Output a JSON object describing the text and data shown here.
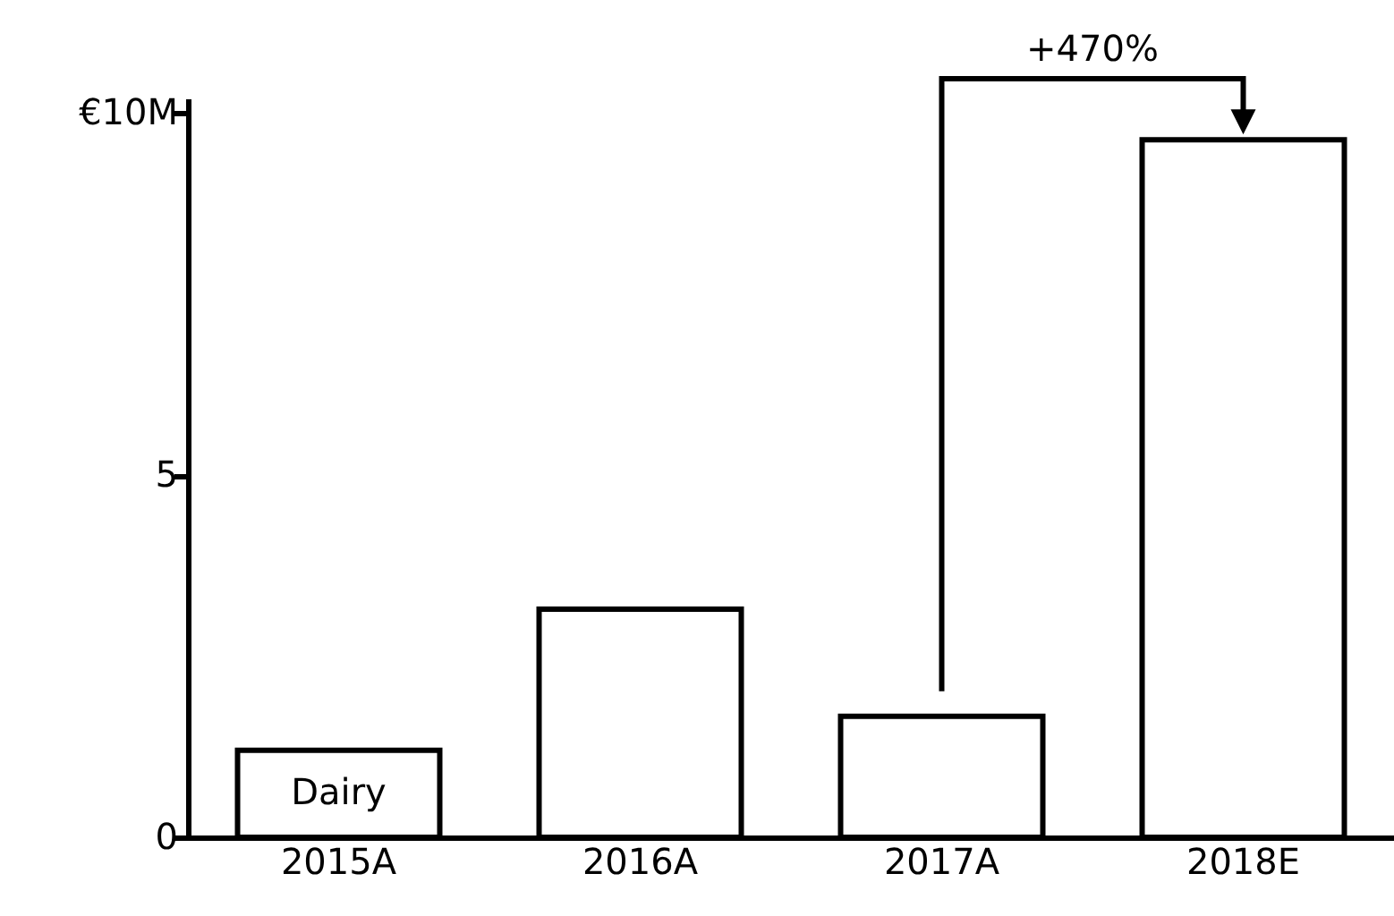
{
  "chart_data": {
    "type": "bar",
    "categories": [
      "2015A",
      "2016A",
      "2017A",
      "2018E"
    ],
    "series": [
      {
        "name": "Dairy",
        "color": "#ffffff",
        "values": [
          1.2,
          3.15,
          1.67,
          9.63
        ]
      }
    ],
    "ylim": [
      0,
      10.2
    ],
    "yticks": [
      0,
      5,
      {
        "value": 10,
        "label": "€10M"
      }
    ],
    "grid": false,
    "legend": false,
    "annotations": [
      "+470%"
    ]
  }
}
